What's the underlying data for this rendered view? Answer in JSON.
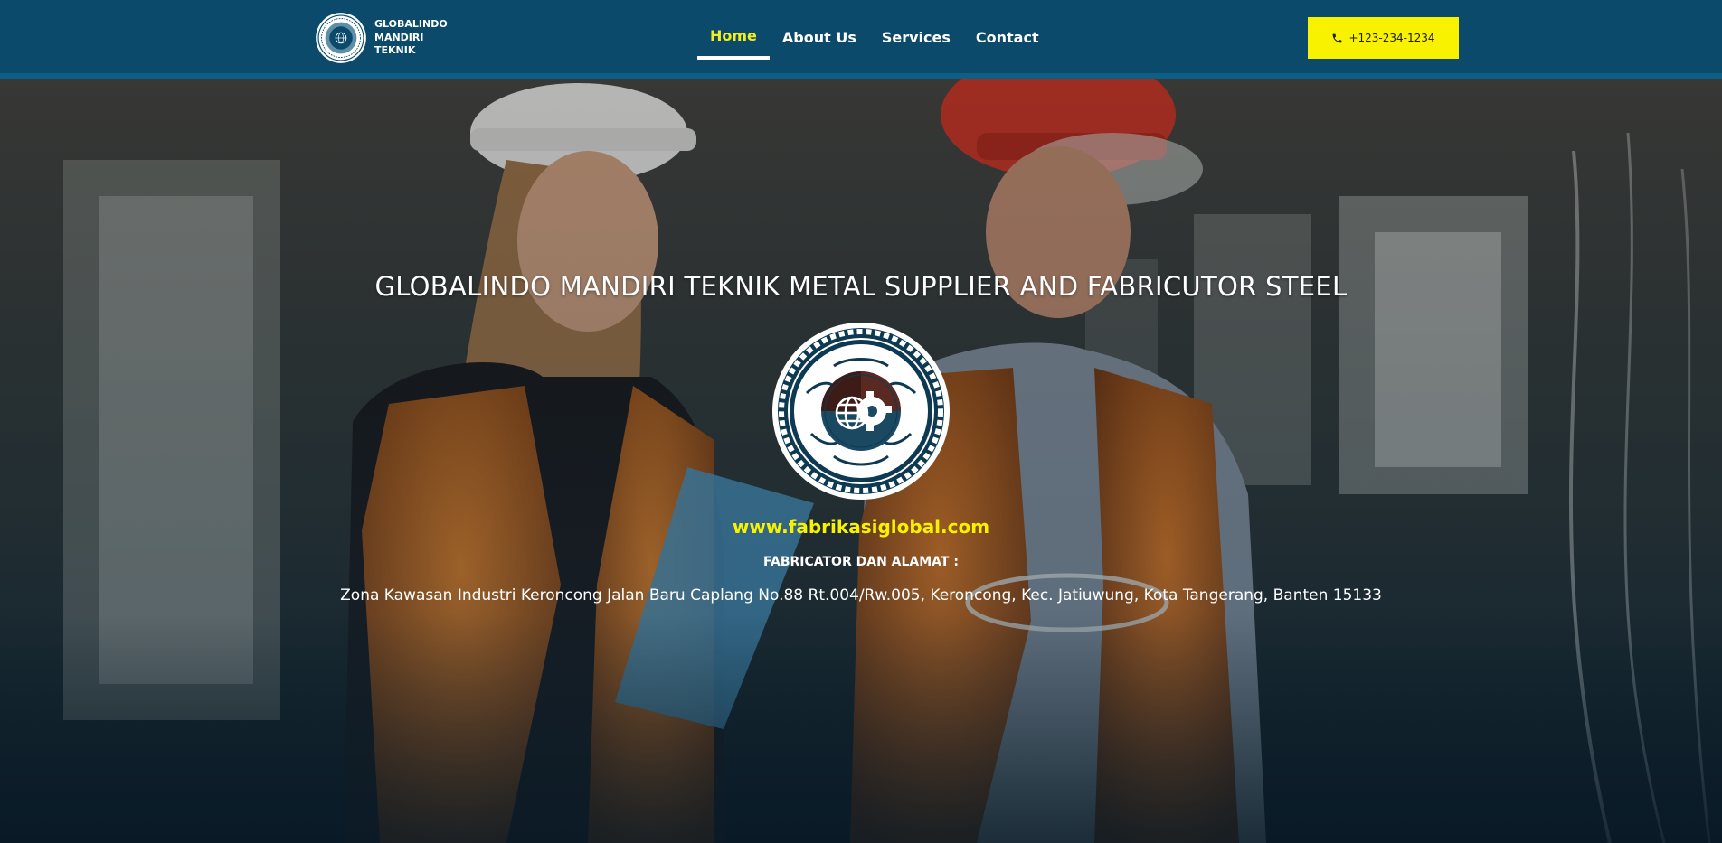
{
  "header": {
    "logo": {
      "lines": [
        "GLOBALINDO",
        "MANDIRI",
        "TEKNIK"
      ],
      "icon": "globe-gear-emblem-icon"
    },
    "nav": [
      {
        "label": "Home",
        "active": true
      },
      {
        "label": "About Us",
        "active": false
      },
      {
        "label": "Services",
        "active": false
      },
      {
        "label": "Contact",
        "active": false
      }
    ],
    "phone_button": {
      "label": "+123-234-1234",
      "icon": "phone-icon"
    }
  },
  "hero": {
    "title": "GLOBALINDO MANDIRI TEKNIK METAL SUPPLIER AND FABRICUTOR STEEL",
    "emblem": "globe-gear-emblem-icon",
    "url": "www.fabrikasiglobal.com",
    "label": "FABRICATOR DAN ALAMAT :",
    "address": "Zona Kawasan Industri Keroncong Jalan Baru Caplang No.88 Rt.004/Rw.005, Keroncong, Kec. Jatiuwung, Kota Tangerang, Banten 15133",
    "background": "two-workers-hardhats-safety-vests-photo"
  },
  "colors": {
    "header_bg": "#0b4a6a",
    "accent_yellow": "#f8f200",
    "active_nav": "#f3ee1c",
    "text_white": "#ffffff"
  }
}
